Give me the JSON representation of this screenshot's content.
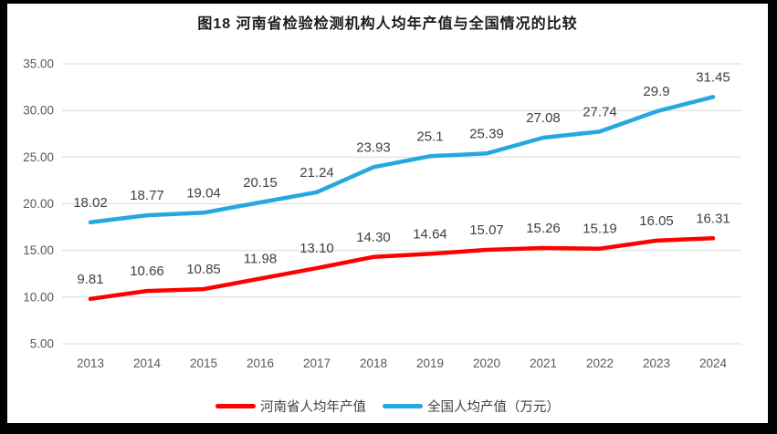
{
  "title": "图18  河南省检验检测机构人均年产值与全国情况的比较",
  "chart_data": {
    "type": "line",
    "title": "图18  河南省检验检测机构人均年产值与全国情况的比较",
    "x": [
      "2013",
      "2014",
      "2015",
      "2016",
      "2017",
      "2018",
      "2019",
      "2020",
      "2021",
      "2022",
      "2023",
      "2024"
    ],
    "series": [
      {
        "name": "河南省人均年产值",
        "color": "#ff0000",
        "values": [
          9.81,
          10.66,
          10.85,
          11.98,
          13.1,
          14.3,
          14.64,
          15.07,
          15.26,
          15.19,
          16.05,
          16.31
        ],
        "labels": [
          "9.81",
          "10.66",
          "10.85",
          "11.98",
          "13.10",
          "14.30",
          "14.64",
          "15.07",
          "15.26",
          "15.19",
          "16.05",
          "16.31"
        ]
      },
      {
        "name": "全国人均产值（万元）",
        "color": "#25a8e0",
        "values": [
          18.02,
          18.77,
          19.04,
          20.15,
          21.24,
          23.93,
          25.1,
          25.39,
          27.08,
          27.74,
          29.9,
          31.45
        ],
        "labels": [
          "18.02",
          "18.77",
          "19.04",
          "20.15",
          "21.24",
          "23.93",
          "25.1",
          "25.39",
          "27.08",
          "27.74",
          "29.9",
          "31.45"
        ]
      }
    ],
    "xlabel": "",
    "ylabel": "",
    "ylim": [
      5,
      35
    ],
    "yticks": [
      {
        "value": 35,
        "label": "35.00"
      },
      {
        "value": 30,
        "label": "30.00"
      },
      {
        "value": 25,
        "label": "25.00"
      },
      {
        "value": 20,
        "label": "20.00"
      },
      {
        "value": 15,
        "label": "15.00"
      },
      {
        "value": 10,
        "label": "10.00"
      },
      {
        "value": 5,
        "label": "5.00"
      }
    ],
    "grid": true,
    "legend_position": "bottom",
    "grid_color": "#d9d9d9",
    "axis_label_color": "#595959",
    "point_label_color": "#404040",
    "background": "#ffffff",
    "frame_color": "#000000"
  }
}
